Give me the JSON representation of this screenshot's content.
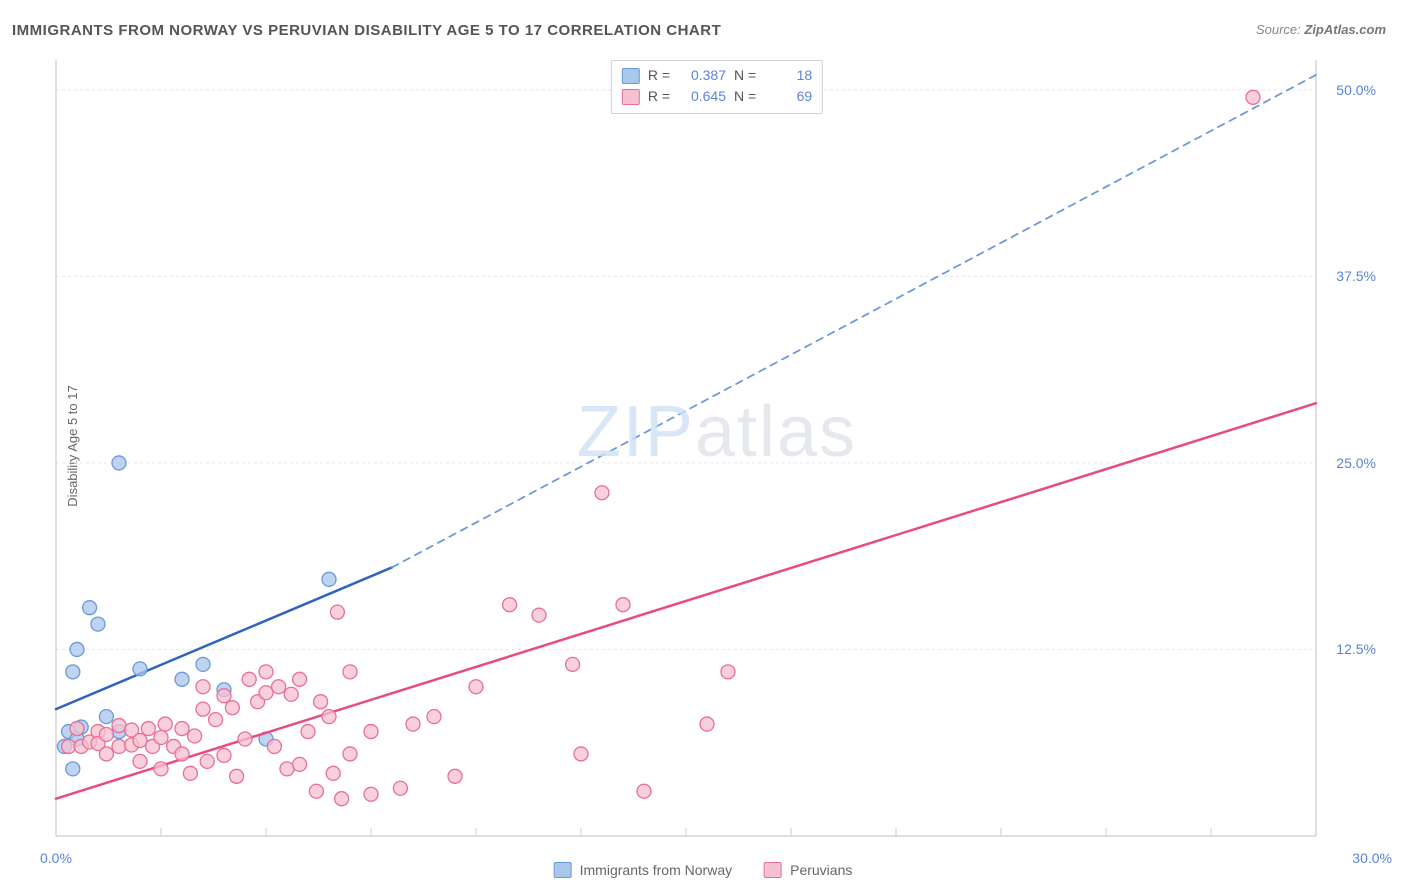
{
  "title": "IMMIGRANTS FROM NORWAY VS PERUVIAN DISABILITY AGE 5 TO 17 CORRELATION CHART",
  "source_prefix": "Source: ",
  "source_site": "ZipAtlas.com",
  "y_axis_label": "Disability Age 5 to 17",
  "watermark": {
    "bold": "ZIP",
    "thin": "atlas"
  },
  "chart": {
    "type": "scatter",
    "background_color": "#ffffff",
    "grid_color": "#e6e6e6",
    "axis_color": "#cccccc",
    "xlim": [
      0,
      30
    ],
    "ylim": [
      0,
      52
    ],
    "x_ticks_major": [
      0,
      30
    ],
    "x_ticks_minor_step": 2.5,
    "y_ticks": [
      12.5,
      25.0,
      37.5,
      50.0
    ],
    "y_tick_labels": [
      "12.5%",
      "25.0%",
      "37.5%",
      "50.0%"
    ],
    "x_tick_labels": [
      "0.0%",
      "30.0%"
    ],
    "tick_label_color": "#5b84d6",
    "tick_label_fontsize": 14
  },
  "legend_top": {
    "r_label": "R =",
    "n_label": "N =",
    "rows": [
      {
        "swatch_fill": "#a9c6ec",
        "swatch_stroke": "#6a99d8",
        "r": "0.387",
        "n": "18"
      },
      {
        "swatch_fill": "#f6c0d0",
        "swatch_stroke": "#e86f96",
        "r": "0.645",
        "n": "69"
      }
    ]
  },
  "legend_bottom": {
    "items": [
      {
        "swatch_fill": "#a9c6ec",
        "swatch_stroke": "#6a99d8",
        "label": "Immigrants from Norway"
      },
      {
        "swatch_fill": "#f6c0d0",
        "swatch_stroke": "#e86f96",
        "label": "Peruvians"
      }
    ]
  },
  "series": [
    {
      "name": "norway",
      "marker_fill": "#a9c6ec",
      "marker_stroke": "#6a99d8",
      "marker_radius": 7,
      "marker_opacity": 0.75,
      "trend_color_solid": "#2e64c0",
      "trend_color_dash": "#6a99d8",
      "trend_width": 2.5,
      "trend_solid": [
        [
          0.0,
          8.5
        ],
        [
          8.0,
          18.0
        ]
      ],
      "trend_dash": [
        [
          8.0,
          18.0
        ],
        [
          30.0,
          51.0
        ]
      ],
      "points": [
        [
          0.2,
          6.0
        ],
        [
          0.3,
          7.0
        ],
        [
          0.4,
          4.5
        ],
        [
          0.5,
          6.5
        ],
        [
          0.6,
          7.3
        ],
        [
          0.4,
          11.0
        ],
        [
          0.5,
          12.5
        ],
        [
          1.0,
          14.2
        ],
        [
          0.8,
          15.3
        ],
        [
          1.2,
          8.0
        ],
        [
          1.5,
          7.0
        ],
        [
          1.5,
          25.0
        ],
        [
          2.0,
          11.2
        ],
        [
          3.0,
          10.5
        ],
        [
          3.5,
          11.5
        ],
        [
          4.0,
          9.8
        ],
        [
          5.0,
          6.5
        ],
        [
          6.5,
          17.2
        ]
      ]
    },
    {
      "name": "peruvians",
      "marker_fill": "#f6c0d0",
      "marker_stroke": "#e86f96",
      "marker_radius": 7,
      "marker_opacity": 0.75,
      "trend_color_solid": "#e94b7d",
      "trend_width": 2.5,
      "trend_solid": [
        [
          0.0,
          2.5
        ],
        [
          30.0,
          29.0
        ]
      ],
      "points": [
        [
          0.3,
          6.0
        ],
        [
          0.5,
          7.2
        ],
        [
          0.6,
          6.0
        ],
        [
          0.8,
          6.3
        ],
        [
          1.0,
          7.0
        ],
        [
          1.0,
          6.2
        ],
        [
          1.2,
          5.5
        ],
        [
          1.2,
          6.8
        ],
        [
          1.5,
          6.0
        ],
        [
          1.5,
          7.4
        ],
        [
          1.8,
          6.1
        ],
        [
          1.8,
          7.1
        ],
        [
          2.0,
          5.0
        ],
        [
          2.0,
          6.4
        ],
        [
          2.2,
          7.2
        ],
        [
          2.3,
          6.0
        ],
        [
          2.5,
          6.6
        ],
        [
          2.5,
          4.5
        ],
        [
          2.6,
          7.5
        ],
        [
          2.8,
          6.0
        ],
        [
          3.0,
          7.2
        ],
        [
          3.0,
          5.5
        ],
        [
          3.2,
          4.2
        ],
        [
          3.3,
          6.7
        ],
        [
          3.5,
          8.5
        ],
        [
          3.5,
          10.0
        ],
        [
          3.6,
          5.0
        ],
        [
          3.8,
          7.8
        ],
        [
          4.0,
          9.4
        ],
        [
          4.0,
          5.4
        ],
        [
          4.2,
          8.6
        ],
        [
          4.3,
          4.0
        ],
        [
          4.5,
          6.5
        ],
        [
          4.6,
          10.5
        ],
        [
          4.8,
          9.0
        ],
        [
          5.0,
          9.6
        ],
        [
          5.0,
          11.0
        ],
        [
          5.2,
          6.0
        ],
        [
          5.3,
          10.0
        ],
        [
          5.5,
          4.5
        ],
        [
          5.6,
          9.5
        ],
        [
          5.8,
          10.5
        ],
        [
          5.8,
          4.8
        ],
        [
          6.0,
          7.0
        ],
        [
          6.2,
          3.0
        ],
        [
          6.3,
          9.0
        ],
        [
          6.5,
          8.0
        ],
        [
          6.6,
          4.2
        ],
        [
          6.7,
          15.0
        ],
        [
          6.8,
          2.5
        ],
        [
          7.0,
          11.0
        ],
        [
          7.0,
          5.5
        ],
        [
          7.5,
          7.0
        ],
        [
          7.5,
          2.8
        ],
        [
          8.2,
          3.2
        ],
        [
          8.5,
          7.5
        ],
        [
          9.0,
          8.0
        ],
        [
          9.5,
          4.0
        ],
        [
          10.0,
          10.0
        ],
        [
          10.8,
          15.5
        ],
        [
          11.5,
          14.8
        ],
        [
          12.3,
          11.5
        ],
        [
          12.5,
          5.5
        ],
        [
          13.0,
          23.0
        ],
        [
          13.5,
          15.5
        ],
        [
          14.0,
          3.0
        ],
        [
          15.5,
          7.5
        ],
        [
          16.0,
          11.0
        ],
        [
          28.5,
          49.5
        ]
      ]
    }
  ]
}
